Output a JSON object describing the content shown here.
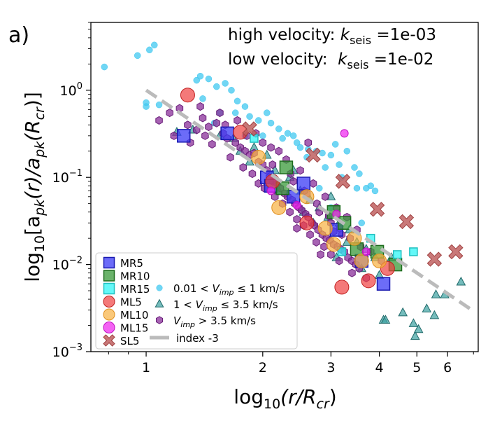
{
  "chart_data": {
    "type": "scatter",
    "panel_label": "a)",
    "xlabel_main": "log",
    "xlabel_sub": "10",
    "xlabel_rest": "(r/R",
    "xlabel_sub2": "cr",
    "xlabel_end": ")",
    "ylabel_main": "log",
    "ylabel_sub": "10",
    "ylabel_text": "[a",
    "ylabel_pk": "pk",
    "ylabel_r": "(r)/a",
    "ylabel_pk2": "pk",
    "ylabel_rcr": "(R",
    "ylabel_cr": "cr",
    "ylabel_end": ")]",
    "xscale": "log",
    "yscale": "log",
    "xlim": [
      0.72,
      7.2
    ],
    "ylim": [
      0.001,
      6.0
    ],
    "xticks": [
      1,
      2,
      3,
      4,
      5,
      6
    ],
    "xticklabels": [
      "1",
      "2",
      "3",
      "4",
      "5",
      "6"
    ],
    "yticks": [
      0.001,
      0.01,
      0.1,
      1
    ],
    "yticklabels": [
      {
        "base": "10",
        "exp": "−3"
      },
      {
        "base": "10",
        "exp": "−2"
      },
      {
        "base": "10",
        "exp": "−1"
      },
      {
        "base": "10",
        "exp": "0"
      }
    ],
    "annotation_high": {
      "prefix": "high velocity: ",
      "k": "k",
      "sub": "seis",
      "suffix": " =1e-03"
    },
    "annotation_low": {
      "prefix": "low velocity:  ",
      "k": "k",
      "sub": "seis",
      "suffix": " =1e-02"
    },
    "legend_location": "bottom-left",
    "index_line": {
      "name": "index -3",
      "x": [
        1.0,
        7.0
      ],
      "y": [
        1.0,
        0.00292
      ],
      "color": "#bbbbbb"
    },
    "series": [
      {
        "name": "MR5",
        "marker": "square",
        "color": "#3b3bf5",
        "edge": "#1a1ab0",
        "size": "large",
        "points": [
          [
            1.25,
            0.3
          ],
          [
            1.62,
            0.32
          ],
          [
            2.05,
            0.1
          ],
          [
            2.1,
            0.08
          ],
          [
            2.55,
            0.085
          ],
          [
            3.1,
            0.025
          ],
          [
            3.6,
            0.011
          ],
          [
            4.1,
            0.006
          ],
          [
            2.4,
            0.06
          ]
        ]
      },
      {
        "name": "MR10",
        "marker": "square",
        "color": "#3a9a3a",
        "edge": "#1d6b1d",
        "size": "large",
        "points": [
          [
            2.3,
            0.13
          ],
          [
            2.25,
            0.075
          ],
          [
            3.05,
            0.04
          ],
          [
            3.5,
            0.015
          ],
          [
            3.95,
            0.014
          ],
          [
            4.4,
            0.01
          ],
          [
            3.25,
            0.03
          ]
        ]
      },
      {
        "name": "MR15",
        "marker": "square",
        "color": "#30f5f5",
        "edge": "#20c0c0",
        "size": "small",
        "points": [
          [
            1.9,
            0.28
          ],
          [
            3.2,
            0.014
          ],
          [
            4.45,
            0.013
          ],
          [
            4.9,
            0.014
          ],
          [
            3.8,
            0.02
          ]
        ]
      },
      {
        "name": "ML5",
        "marker": "circle",
        "color": "#f04040",
        "edge": "#c02020",
        "size": "large",
        "points": [
          [
            1.28,
            0.88
          ],
          [
            1.75,
            0.33
          ],
          [
            2.12,
            0.09
          ],
          [
            3.2,
            0.0055
          ],
          [
            3.75,
            0.0065
          ],
          [
            2.6,
            0.03
          ],
          [
            4.2,
            0.009
          ]
        ]
      },
      {
        "name": "ML10",
        "marker": "circle",
        "color": "#f8b040",
        "edge": "#e09020",
        "size": "large",
        "points": [
          [
            1.95,
            0.17
          ],
          [
            2.6,
            0.06
          ],
          [
            2.9,
            0.026
          ],
          [
            3.05,
            0.017
          ],
          [
            3.6,
            0.011
          ],
          [
            2.2,
            0.045
          ],
          [
            4.0,
            0.011
          ],
          [
            3.45,
            0.02
          ]
        ]
      },
      {
        "name": "ML15",
        "marker": "circle",
        "color": "#f020f0",
        "edge": "#c010c0",
        "size": "small",
        "points": [
          [
            3.25,
            0.32
          ],
          [
            3.1,
            0.038
          ],
          [
            2.45,
            0.048
          ],
          [
            3.7,
            0.014
          ],
          [
            2.1,
            0.07
          ]
        ]
      },
      {
        "name": "SL5",
        "marker": "x",
        "color": "#c06060",
        "edge": "#a04040",
        "size": "large",
        "points": [
          [
            1.85,
            0.36
          ],
          [
            2.7,
            0.18
          ],
          [
            3.22,
            0.09
          ],
          [
            3.95,
            0.043
          ],
          [
            4.7,
            0.031
          ],
          [
            5.55,
            0.0115
          ],
          [
            6.3,
            0.014
          ]
        ]
      },
      {
        "name": "0.01 < V_imp ≤ 1 km/s",
        "label_parts": [
          "0.01 < ",
          "V",
          "imp",
          " ≤  1 km/s"
        ],
        "marker": "dot",
        "color": "#40c8f0",
        "edge": "#40c8f0",
        "size": "small",
        "points": [
          [
            0.78,
            1.85
          ],
          [
            0.95,
            2.5
          ],
          [
            1.02,
            2.9
          ],
          [
            1.05,
            3.3
          ],
          [
            1.0,
            0.72
          ],
          [
            1.0,
            0.65
          ],
          [
            1.08,
            0.68
          ],
          [
            1.35,
            1.3
          ],
          [
            1.38,
            1.45
          ],
          [
            1.45,
            1.35
          ],
          [
            1.52,
            1.1
          ],
          [
            1.6,
            1.2
          ],
          [
            1.66,
            1.0
          ],
          [
            1.72,
            0.75
          ],
          [
            1.8,
            0.65
          ],
          [
            1.55,
            0.55
          ],
          [
            1.5,
            0.42
          ],
          [
            1.85,
            0.5
          ],
          [
            1.95,
            0.45
          ],
          [
            2.05,
            0.55
          ],
          [
            2.1,
            0.42
          ],
          [
            2.2,
            0.36
          ],
          [
            2.32,
            0.32
          ],
          [
            2.45,
            0.25
          ],
          [
            2.5,
            0.22
          ],
          [
            2.62,
            0.21
          ],
          [
            2.75,
            0.2
          ],
          [
            2.85,
            0.19
          ],
          [
            3.0,
            0.18
          ],
          [
            3.08,
            0.24
          ],
          [
            3.15,
            0.14
          ],
          [
            3.3,
            0.2
          ],
          [
            3.45,
            0.13
          ],
          [
            3.55,
            0.11
          ],
          [
            3.7,
            0.075
          ],
          [
            3.8,
            0.08
          ],
          [
            3.9,
            0.07
          ],
          [
            2.0,
            0.3
          ],
          [
            2.25,
            0.28
          ],
          [
            2.6,
            0.17
          ],
          [
            2.9,
            0.13
          ],
          [
            3.2,
            0.1
          ],
          [
            3.5,
            0.075
          ],
          [
            1.7,
            0.55
          ],
          [
            2.4,
            0.3
          ],
          [
            2.8,
            0.075
          ],
          [
            3.6,
            0.03
          ],
          [
            3.0,
            0.045
          ],
          [
            1.4,
            0.8
          ],
          [
            1.8,
            0.3
          ]
        ]
      },
      {
        "name": "1 < V_imp ≤ 3.5 km/s",
        "label_parts": [
          "1 < ",
          "V",
          "imp",
          " ≤  3.5 km/s"
        ],
        "marker": "triangle",
        "color": "#3aa0a0",
        "edge": "#206a6a",
        "size": "small",
        "points": [
          [
            1.2,
            0.33
          ],
          [
            1.32,
            0.35
          ],
          [
            1.55,
            0.3
          ],
          [
            1.68,
            0.28
          ],
          [
            1.9,
            0.22
          ],
          [
            2.05,
            0.18
          ],
          [
            2.15,
            0.12
          ],
          [
            2.35,
            0.1
          ],
          [
            2.5,
            0.07
          ],
          [
            2.65,
            0.055
          ],
          [
            2.8,
            0.045
          ],
          [
            2.95,
            0.035
          ],
          [
            3.15,
            0.03
          ],
          [
            3.35,
            0.025
          ],
          [
            3.5,
            0.018
          ],
          [
            3.7,
            0.015
          ],
          [
            3.9,
            0.012
          ],
          [
            4.1,
            0.0023
          ],
          [
            4.15,
            0.0023
          ],
          [
            4.6,
            0.0028
          ],
          [
            4.9,
            0.0021
          ],
          [
            4.95,
            0.0015
          ],
          [
            5.05,
            0.0018
          ],
          [
            5.3,
            0.0031
          ],
          [
            5.55,
            0.0026
          ],
          [
            5.9,
            0.0045
          ],
          [
            5.6,
            0.0045
          ],
          [
            6.5,
            0.0063
          ],
          [
            3.0,
            0.06
          ],
          [
            2.4,
            0.12
          ],
          [
            2.2,
            0.07
          ],
          [
            1.85,
            0.15
          ],
          [
            3.3,
            0.018
          ],
          [
            4.3,
            0.012
          ],
          [
            2.7,
            0.03
          ],
          [
            3.6,
            0.009
          ],
          [
            4.0,
            0.0075
          ],
          [
            2.55,
            0.04
          ],
          [
            3.1,
            0.012
          ],
          [
            1.75,
            0.2
          ]
        ]
      },
      {
        "name": "V_imp > 3.5 km/s",
        "label_parts": [
          "",
          "V",
          "imp",
          " >  3.5 km/s"
        ],
        "marker": "hexagon",
        "color": "#8a2f9a",
        "edge": "#6a1f7a",
        "size": "small",
        "points": [
          [
            1.08,
            0.45
          ],
          [
            1.15,
            0.55
          ],
          [
            1.22,
            0.62
          ],
          [
            1.28,
            0.4
          ],
          [
            1.35,
            0.35
          ],
          [
            1.4,
            0.48
          ],
          [
            1.45,
            0.38
          ],
          [
            1.52,
            0.42
          ],
          [
            1.58,
            0.32
          ],
          [
            1.62,
            0.28
          ],
          [
            1.7,
            0.25
          ],
          [
            1.75,
            0.22
          ],
          [
            1.8,
            0.2
          ],
          [
            1.85,
            0.18
          ],
          [
            1.9,
            0.19
          ],
          [
            1.95,
            0.15
          ],
          [
            2.0,
            0.14
          ],
          [
            2.05,
            0.12
          ],
          [
            2.08,
            0.1
          ],
          [
            2.12,
            0.09
          ],
          [
            2.18,
            0.085
          ],
          [
            2.22,
            0.075
          ],
          [
            2.28,
            0.065
          ],
          [
            2.32,
            0.06
          ],
          [
            2.38,
            0.055
          ],
          [
            2.42,
            0.05
          ],
          [
            2.48,
            0.045
          ],
          [
            2.52,
            0.042
          ],
          [
            2.58,
            0.038
          ],
          [
            2.62,
            0.035
          ],
          [
            2.68,
            0.03
          ],
          [
            2.72,
            0.028
          ],
          [
            2.78,
            0.025
          ],
          [
            2.85,
            0.022
          ],
          [
            2.92,
            0.02
          ],
          [
            2.98,
            0.019
          ],
          [
            3.05,
            0.017
          ],
          [
            3.12,
            0.016
          ],
          [
            3.18,
            0.015
          ],
          [
            3.25,
            0.014
          ],
          [
            3.32,
            0.012
          ],
          [
            3.4,
            0.011
          ],
          [
            3.48,
            0.01
          ],
          [
            3.55,
            0.009
          ],
          [
            1.3,
            0.25
          ],
          [
            1.48,
            0.24
          ],
          [
            1.65,
            0.17
          ],
          [
            1.78,
            0.13
          ],
          [
            1.88,
            0.11
          ],
          [
            2.02,
            0.075
          ],
          [
            2.15,
            0.06
          ],
          [
            2.25,
            0.05
          ],
          [
            2.35,
            0.04
          ],
          [
            2.45,
            0.033
          ],
          [
            2.55,
            0.028
          ],
          [
            2.65,
            0.022
          ],
          [
            2.75,
            0.018
          ],
          [
            2.88,
            0.016
          ],
          [
            3.0,
            0.013
          ],
          [
            3.15,
            0.011
          ],
          [
            1.38,
            0.65
          ],
          [
            1.55,
            0.55
          ],
          [
            1.72,
            0.45
          ],
          [
            1.92,
            0.32
          ],
          [
            2.1,
            0.22
          ],
          [
            2.3,
            0.16
          ],
          [
            2.5,
            0.12
          ],
          [
            2.7,
            0.085
          ],
          [
            2.9,
            0.06
          ],
          [
            3.1,
            0.045
          ],
          [
            3.3,
            0.035
          ],
          [
            3.5,
            0.025
          ],
          [
            2.0,
            0.25
          ],
          [
            2.2,
            0.2
          ],
          [
            2.4,
            0.09
          ],
          [
            2.6,
            0.065
          ],
          [
            2.8,
            0.04
          ],
          [
            3.0,
            0.03
          ],
          [
            3.2,
            0.022
          ],
          [
            1.6,
            0.4
          ],
          [
            1.82,
            0.3
          ],
          [
            2.12,
            0.14
          ],
          [
            2.36,
            0.11
          ],
          [
            2.56,
            0.07
          ],
          [
            2.76,
            0.05
          ],
          [
            2.96,
            0.036
          ],
          [
            3.16,
            0.026
          ],
          [
            3.36,
            0.02
          ],
          [
            3.58,
            0.016
          ],
          [
            3.8,
            0.014
          ],
          [
            4.05,
            0.011
          ],
          [
            1.18,
            0.3
          ],
          [
            1.42,
            0.3
          ],
          [
            2.62,
            0.25
          ],
          [
            3.05,
            0.024
          ],
          [
            1.95,
            0.085
          ],
          [
            2.45,
            0.026
          ],
          [
            2.82,
            0.013
          ],
          [
            3.4,
            0.008
          ],
          [
            3.7,
            0.007
          ]
        ]
      }
    ]
  }
}
